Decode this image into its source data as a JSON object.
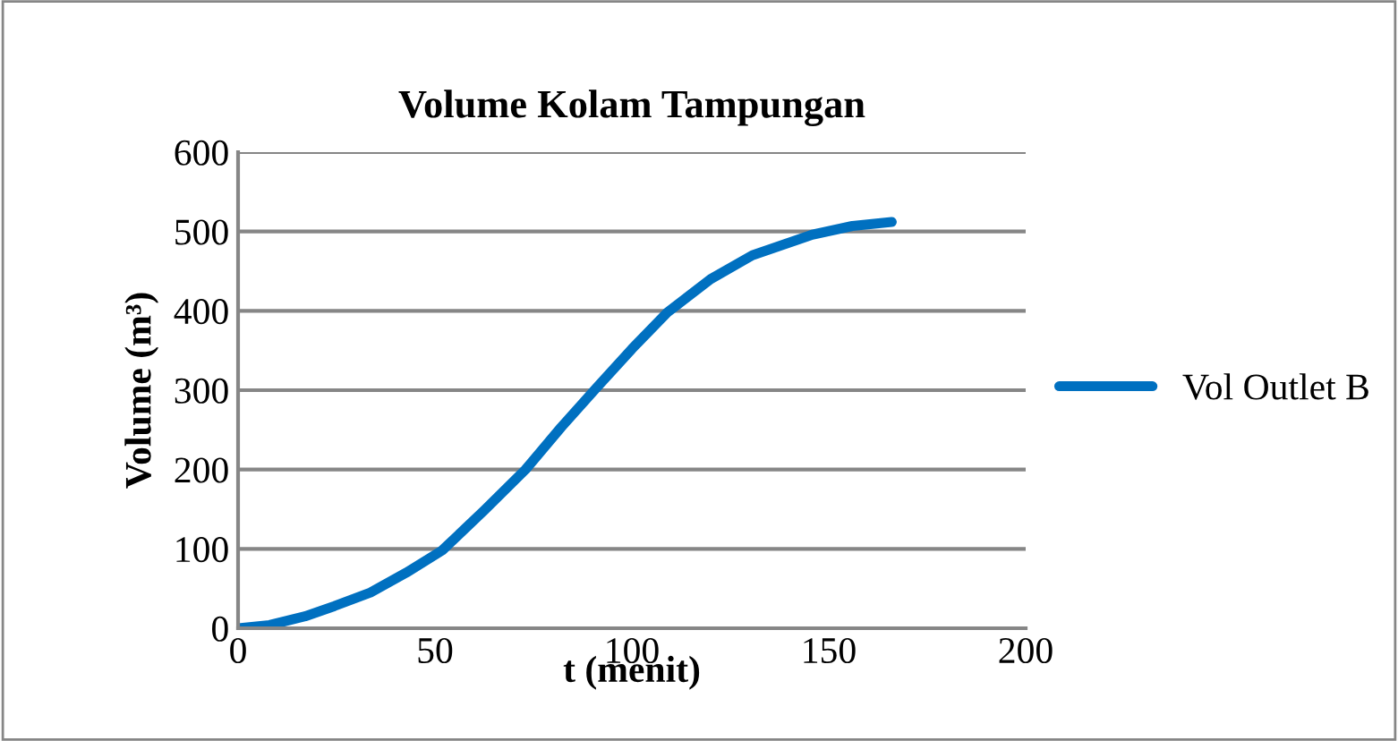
{
  "chart_data": {
    "type": "line",
    "title": "Volume Kolam Tampungan",
    "xlabel": "t (menit)",
    "ylabel": "Volume (m³)",
    "xlim": [
      0,
      200
    ],
    "xticks": [
      0,
      50,
      100,
      150,
      200
    ],
    "ylim": [
      0,
      600
    ],
    "yticks": [
      0,
      100,
      200,
      300,
      400,
      500,
      600
    ],
    "grid": "y",
    "legend": "right",
    "marker": "none",
    "line_style": "solid",
    "series": [
      {
        "name": "Vol Outlet B",
        "color": "#0070c0",
        "x": [
          0,
          8,
          17,
          24.5,
          33.6,
          42.7,
          51.8,
          62.4,
          73,
          82,
          91,
          100,
          109,
          120,
          130.6,
          145.8,
          156,
          166
        ],
        "values": [
          0,
          4,
          15,
          28,
          45,
          70,
          98,
          148,
          200,
          253,
          303,
          352,
          398,
          440,
          470,
          496,
          507,
          512
        ]
      }
    ]
  }
}
